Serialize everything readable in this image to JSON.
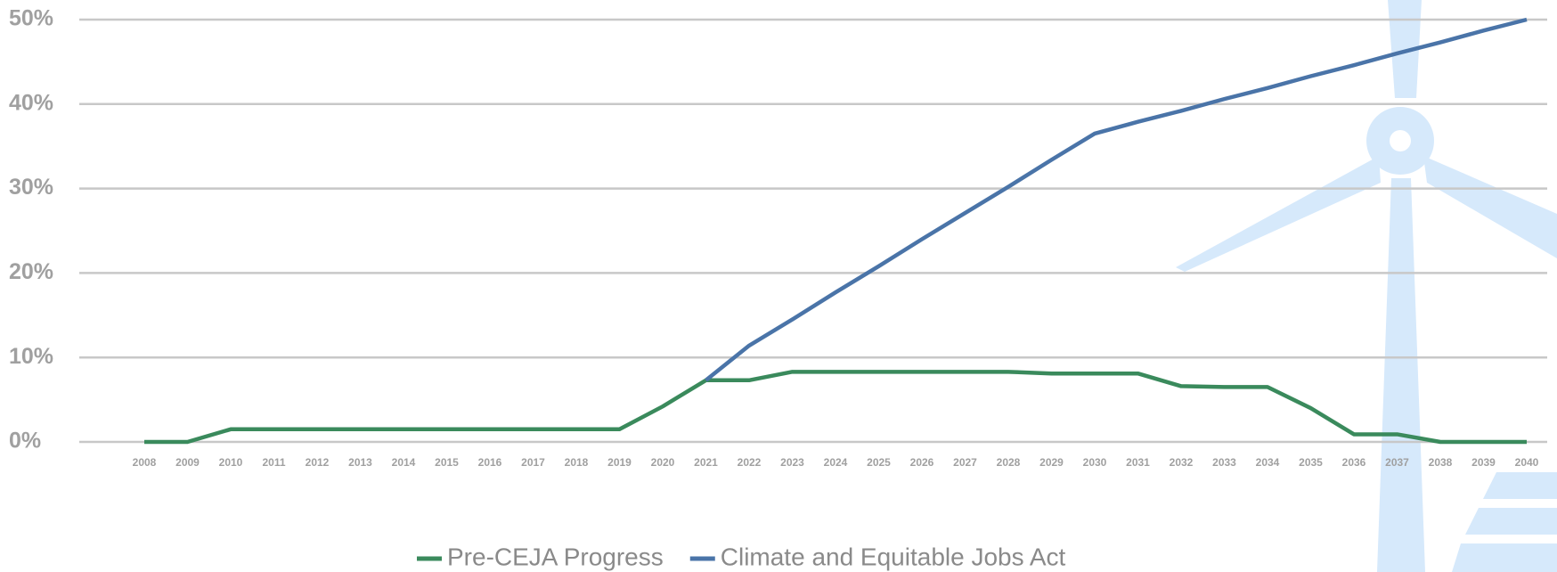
{
  "chart_data": {
    "type": "line",
    "categories": [
      "2008",
      "2009",
      "2010",
      "2011",
      "2012",
      "2013",
      "2014",
      "2015",
      "2016",
      "2017",
      "2018",
      "2019",
      "2020",
      "2021",
      "2022",
      "2023",
      "2024",
      "2025",
      "2026",
      "2027",
      "2028",
      "2029",
      "2030",
      "2031",
      "2032",
      "2033",
      "2034",
      "2035",
      "2036",
      "2037",
      "2038",
      "2039",
      "2040"
    ],
    "series": [
      {
        "name": "Pre-CEJA Progress",
        "color": "#3a8a5c",
        "values": [
          0,
          0,
          1.5,
          1.5,
          1.5,
          1.5,
          1.5,
          1.5,
          1.5,
          1.5,
          1.5,
          1.5,
          4.2,
          7.3,
          7.3,
          8.3,
          8.3,
          8.3,
          8.3,
          8.3,
          8.3,
          8.1,
          8.1,
          8.1,
          6.6,
          6.5,
          6.5,
          4,
          0.9,
          0.9,
          0,
          0,
          0
        ]
      },
      {
        "name": "Climate and Equitable Jobs Act",
        "color": "#4a74a8",
        "values": [
          null,
          null,
          null,
          null,
          null,
          null,
          null,
          null,
          null,
          null,
          null,
          null,
          null,
          7.3,
          11.4,
          14.5,
          17.7,
          20.8,
          24.0,
          27.1,
          30.2,
          33.4,
          36.5,
          37.9,
          39.2,
          40.6,
          41.9,
          43.3,
          44.6,
          46.0,
          47.3,
          48.7,
          50
        ]
      }
    ],
    "ylim": [
      0,
      50
    ],
    "yticks": [
      {
        "value": 0,
        "label": "0%"
      },
      {
        "value": 10,
        "label": "10%"
      },
      {
        "value": 20,
        "label": "20%"
      },
      {
        "value": 30,
        "label": "30%"
      },
      {
        "value": 40,
        "label": "40%"
      },
      {
        "value": 50,
        "label": "50%"
      }
    ],
    "grid": true,
    "legend": "bottom"
  }
}
